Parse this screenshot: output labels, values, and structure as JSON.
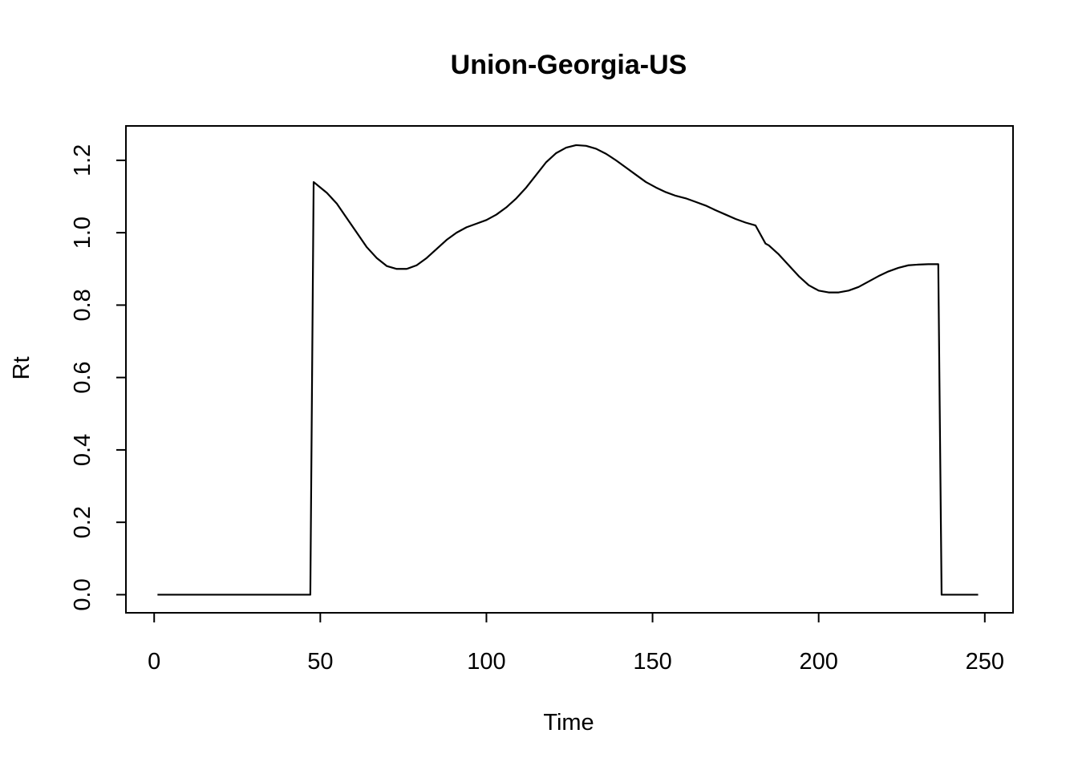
{
  "chart_data": {
    "type": "line",
    "title": "Union-Georgia-US",
    "xlabel": "Time",
    "ylabel": "Rt",
    "xlim": [
      -8.5,
      258.5
    ],
    "ylim": [
      -0.05,
      1.295
    ],
    "xticks": [
      0,
      50,
      100,
      150,
      200,
      250
    ],
    "yticks": [
      0.0,
      0.2,
      0.4,
      0.6,
      0.8,
      1.0,
      1.2
    ],
    "xtick_labels": [
      "0",
      "50",
      "100",
      "150",
      "200",
      "250"
    ],
    "ytick_labels": [
      "0.0",
      "0.2",
      "0.4",
      "0.6",
      "0.8",
      "1.0",
      "1.2"
    ],
    "grid": false,
    "series": [
      {
        "color": "#000000",
        "x": [
          1,
          10,
          20,
          30,
          40,
          47,
          48,
          50,
          52,
          55,
          58,
          61,
          64,
          67,
          70,
          73,
          76,
          79,
          82,
          85,
          88,
          91,
          94,
          97,
          100,
          103,
          106,
          109,
          112,
          115,
          118,
          121,
          124,
          127,
          130,
          133,
          136,
          139,
          142,
          145,
          148,
          151,
          154,
          157,
          160,
          163,
          166,
          169,
          172,
          175,
          178,
          181,
          184,
          185,
          188,
          191,
          194,
          197,
          200,
          203,
          206,
          209,
          212,
          215,
          218,
          221,
          224,
          227,
          230,
          233,
          236,
          237,
          240,
          244,
          248
        ],
        "y": [
          0,
          0,
          0,
          0,
          0,
          0,
          1.14,
          1.125,
          1.11,
          1.08,
          1.04,
          1.0,
          0.96,
          0.93,
          0.908,
          0.9,
          0.9,
          0.91,
          0.93,
          0.955,
          0.98,
          1.0,
          1.015,
          1.025,
          1.035,
          1.05,
          1.07,
          1.095,
          1.125,
          1.16,
          1.195,
          1.22,
          1.235,
          1.242,
          1.24,
          1.232,
          1.218,
          1.2,
          1.18,
          1.16,
          1.14,
          1.125,
          1.112,
          1.102,
          1.095,
          1.085,
          1.075,
          1.062,
          1.05,
          1.038,
          1.028,
          1.02,
          0.97,
          0.965,
          0.94,
          0.91,
          0.88,
          0.855,
          0.84,
          0.835,
          0.835,
          0.84,
          0.85,
          0.865,
          0.88,
          0.893,
          0.903,
          0.91,
          0.912,
          0.913,
          0.913,
          0,
          0,
          0,
          0
        ]
      }
    ]
  }
}
